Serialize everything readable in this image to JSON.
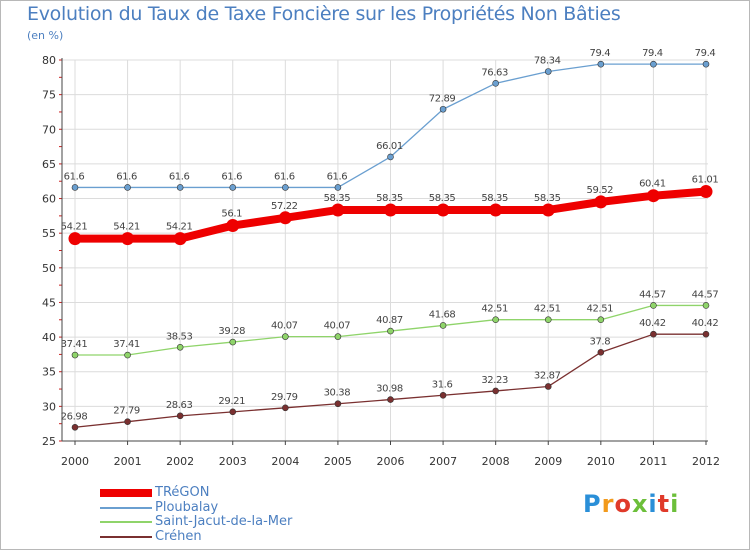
{
  "title": "Evolution du Taux de Taxe Foncière sur les Propriétés Non Bâties",
  "unit_label": "(en %)",
  "logo_text": "Proxiti",
  "colors": {
    "background": "#ffffff",
    "grid": "#dcdcdc",
    "axis": "#444444",
    "tick_marks": "#cc2222",
    "title": "#4c7fc0"
  },
  "chart_data": {
    "type": "line",
    "title": "Evolution du Taux de Taxe Foncière sur les Propriétés Non Bâties",
    "ylabel": "(en %)",
    "xlabel": "",
    "ylim": [
      25,
      80
    ],
    "yticks": [
      25,
      30,
      35,
      40,
      45,
      50,
      55,
      60,
      65,
      70,
      75,
      80
    ],
    "grid": true,
    "legend_position": "bottom-left",
    "categories": [
      "2000",
      "2001",
      "2002",
      "2003",
      "2004",
      "2005",
      "2006",
      "2007",
      "2008",
      "2009",
      "2010",
      "2011",
      "2012"
    ],
    "series": [
      {
        "name": "TRéGON",
        "color": "#ee0000",
        "thick": true,
        "values": [
          54.21,
          54.21,
          54.21,
          56.1,
          57.22,
          58.35,
          58.35,
          58.35,
          58.35,
          58.35,
          59.52,
          60.41,
          61.01
        ],
        "labels": [
          "54.21",
          "54.21",
          "54.21",
          "56.1",
          "57.22",
          "58.35",
          "58.35",
          "58.35",
          "58.35",
          "58.35",
          "59.52",
          "60.41",
          "61.01"
        ]
      },
      {
        "name": "Ploubalay",
        "color": "#6a9fd0",
        "thick": false,
        "values": [
          61.6,
          61.6,
          61.6,
          61.6,
          61.6,
          61.6,
          66.01,
          72.89,
          76.63,
          78.34,
          79.4,
          79.4,
          79.4
        ],
        "labels": [
          "61.6",
          "61.6",
          "61.6",
          "61.6",
          "61.6",
          "61.6",
          "66.01",
          "72.89",
          "76.63",
          "78.34",
          "79.4",
          "79.4",
          "79.4"
        ]
      },
      {
        "name": "Saint-Jacut-de-la-Mer",
        "color": "#8fd46a",
        "thick": false,
        "values": [
          37.41,
          37.41,
          38.53,
          39.28,
          40.07,
          40.07,
          40.87,
          41.68,
          42.51,
          42.51,
          42.51,
          44.57,
          44.57
        ],
        "labels": [
          "37.41",
          "37.41",
          "38.53",
          "39.28",
          "40.07",
          "40.07",
          "40.87",
          "41.68",
          "42.51",
          "42.51",
          "42.51",
          "44.57",
          "44.57"
        ]
      },
      {
        "name": "Créhen",
        "color": "#7a3030",
        "thick": false,
        "values": [
          26.98,
          27.79,
          28.63,
          29.21,
          29.79,
          30.38,
          30.98,
          31.6,
          32.23,
          32.87,
          37.8,
          40.42,
          40.42
        ],
        "labels": [
          "26.98",
          "27.79",
          "28.63",
          "29.21",
          "29.79",
          "30.38",
          "30.98",
          "31.6",
          "32.23",
          "32.87",
          "37.8",
          "40.42",
          "40.42"
        ]
      }
    ]
  }
}
